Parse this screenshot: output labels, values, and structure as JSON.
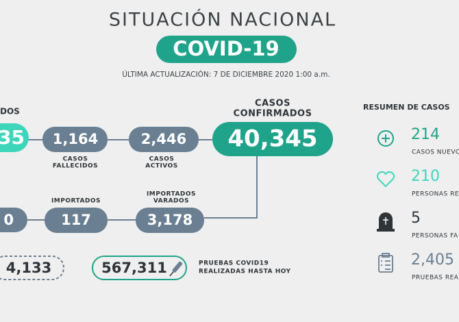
{
  "header": {
    "title": "SITUACIÓN NACIONAL",
    "badge": "COVID-19",
    "updated": "ÚLTIMA ACTUALIZACIÓN: 7 DE DICIEMBRE 2020 1:00 a.m."
  },
  "flow": {
    "recovered": {
      "label": "DOS",
      "value": "35"
    },
    "deaths": {
      "value": "1,164",
      "label": [
        "CASOS",
        "FALLECIDOS"
      ]
    },
    "active": {
      "value": "2,446",
      "label": [
        "CASOS",
        "ACTIVOS"
      ]
    },
    "confirmed": {
      "label": [
        "CASOS",
        "CONFIRMADOS"
      ],
      "value": "40,345"
    },
    "local": {
      "value": "0"
    },
    "imported": {
      "label": [
        "IMPORTADOS"
      ],
      "value": "117"
    },
    "stranded": {
      "label": [
        "IMPORTADOS",
        "VARADOS"
      ],
      "value": "3,178"
    }
  },
  "tests": {
    "pending": "4,133",
    "total": "567,311",
    "label": [
      "PRUEBAS COVID19",
      "REALIZADAS HASTA HOY"
    ]
  },
  "summary": {
    "title": "RESUMEN DE CASOS",
    "items": [
      {
        "value": "214",
        "label": "CASOS NUEVO"
      },
      {
        "value": "210",
        "label": "PERSONAS RE"
      },
      {
        "value": "5",
        "label": "PERSONAS FA"
      },
      {
        "value": "2,405",
        "label": "PRUEBAS REA"
      }
    ]
  }
}
